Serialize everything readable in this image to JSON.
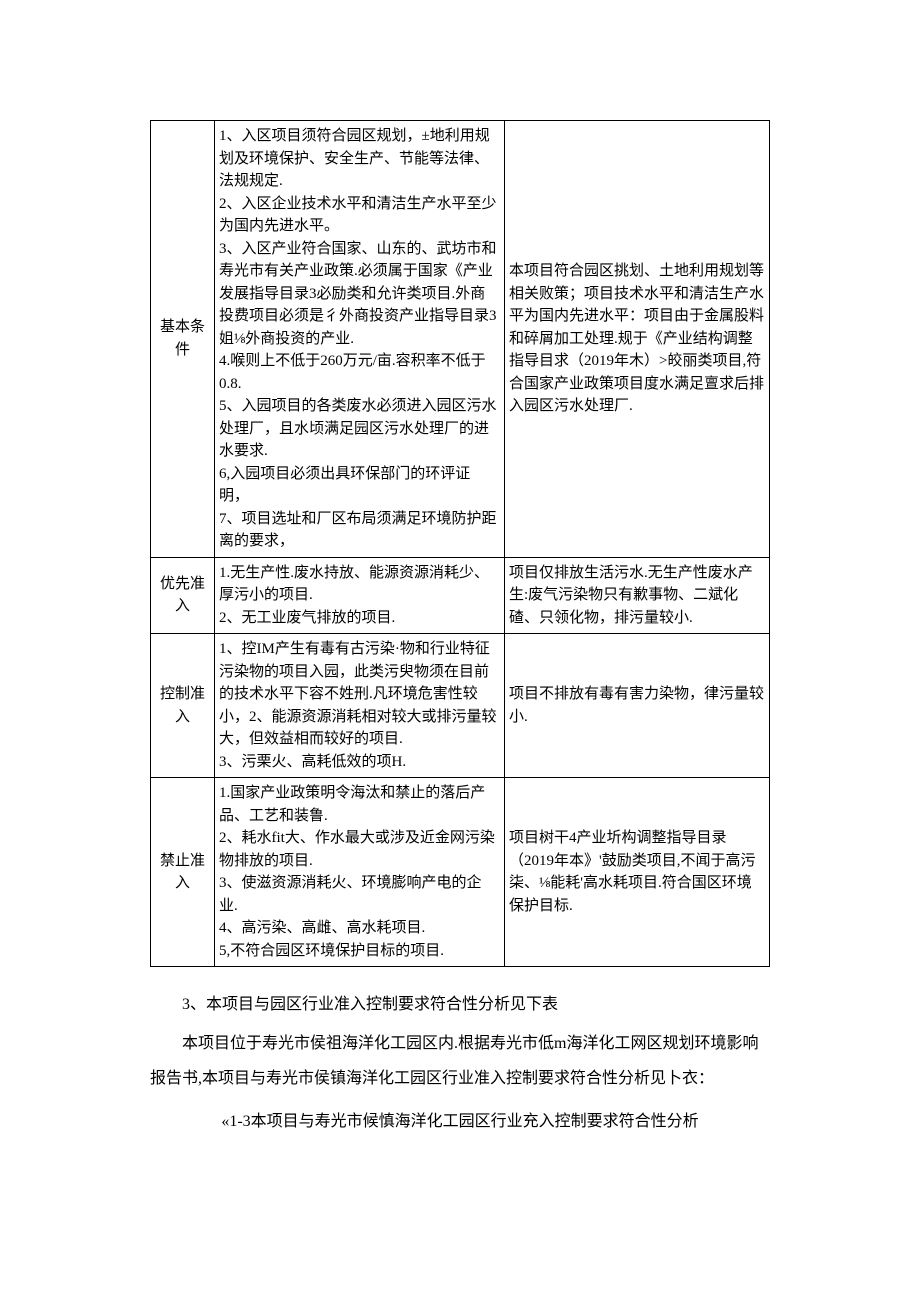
{
  "table": {
    "rows": [
      {
        "label": "基本条件",
        "middle": "1、入区项目须符合园区规划，±地利用规划及环境保护、安全生产、节能等法律、法规规定.\n2、入区企业技术水平和清洁生产水平至少为国内先进水平。\n3、入区产业符合国家、山东的、武坊市和寿光市有关产业政策.必须属于国家《产业发展指导目录3必励类和允许类项目.外商投费项目必须是彳外商投资产业指导目录3姐⅛外商投资的产业.\n4.喉则上不低于260万元/亩.容积率不低于0.8.\n5、入园项目的各类废水必须进入园区污水处理厂，且水顷满足园区污水处理厂的进水要求.\n6,入园项目必须出具环保部门的环评证明，\n7、项目选址和厂区布局须满足环境防护距离的要求，",
        "right": "本项目符合园区挑划、土地利用规划等相关败策；项目技术水平和清洁生产水平为国内先进水平：项目由于金属股料和碎屑加工处理.规于《产业结构调整指导目求（2019年木）>皎丽类项目,符合国家产业政策项目度水满足亶求后排入园区污水处理厂."
      },
      {
        "label": "优先准入",
        "middle": "1.无生产性.废水持放、能源资源消耗少、厚污小的项目.\n2、无工业废气排放的项目.",
        "right": "项目仅排放生活污水.无生产性废水产生:废气污染物只有歉事物、二斌化碴、只领化物，排污量较小."
      },
      {
        "label": "控制准入",
        "middle": "1、控IM产生有毒有古污染·物和行业特征污染物的项目入园，此类污臾物须在目前的技术水平下容不姓刑.凡环境危害性较小，2、能源资源消耗相对较大或排污量较大，但效益相而较好的项目.\n3、污栗火、高耗低效的项H.",
        "right": "项目不排放有毒有害力染物，律污量较小."
      },
      {
        "label": "禁止准入",
        "middle": "1.国家产业政策明令海汰和禁止的落后产品、工艺和装鲁.\n2、耗水fit大、作水最大或涉及近金网污染物排放的项目.\n3、使滋资源消耗火、环境膨响产电的企业.\n4、高污染、高雌、高水耗项目.\n5,不符合园区环境保护目标的项目.",
        "right": "项目树干4产业圻构调整指导目录（2019年本》'鼓励类项目,不闻于高污柒、⅛能耗'高水耗项目.符合国区环境保护目标."
      }
    ]
  },
  "paragraphs": {
    "p1": "3、本项目与园区行业准入控制要求符合性分析见下表",
    "p2": "本项目位于寿光市侯祖海洋化工园区内.根据寿光市低m海洋化工网区规划环境影响报告书,本项目与寿光市侯镇海洋化工园区行业准入控制要求符合性分析见卜衣：",
    "caption": "«1-3本项目与寿光市候慎海洋化工园区行业充入控制要求符合性分析"
  }
}
